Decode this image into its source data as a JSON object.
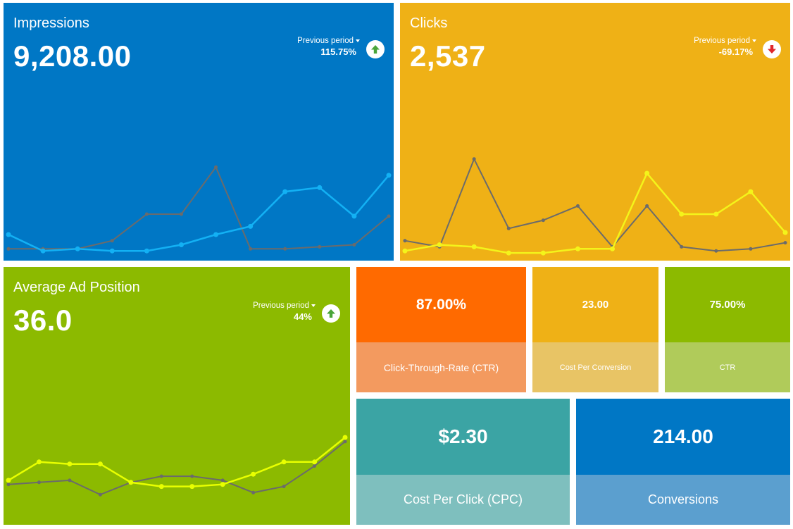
{
  "colors": {
    "blue": "#0077c5",
    "yellow": "#efb116",
    "green": "#8cba00",
    "orange": "#ff6a00",
    "teal": "#3ba4a4",
    "line_gray": "#6b6b6b",
    "line_blue": "#13b1f4",
    "line_yellow": "#f4f41a",
    "line_lime": "#e8ff00"
  },
  "tiles": {
    "impressions": {
      "title": "Impressions",
      "value": "9,208.00",
      "compare_label": "Previous period",
      "compare_pct": "115.75%",
      "trend": "up",
      "trend_icon": "arrow-up-icon"
    },
    "clicks": {
      "title": "Clicks",
      "value": "2,537",
      "compare_label": "Previous period",
      "compare_pct": "-69.17%",
      "trend": "down",
      "trend_icon": "arrow-down-icon"
    },
    "avg_position": {
      "title": "Average Ad Position",
      "value": "36.0",
      "compare_label": "Previous period",
      "compare_pct": "44%",
      "trend": "up",
      "trend_icon": "arrow-up-icon"
    }
  },
  "kpis": {
    "ctr_percent": {
      "value": "87.00%",
      "label": "Click-Through-Rate (CTR)"
    },
    "cost_per_conversion": {
      "value": "23.00",
      "label": "Cost Per Conversion"
    },
    "ctr": {
      "value": "75.00%",
      "label": "CTR"
    },
    "cpc": {
      "value": "$2.30",
      "label": "Cost Per Click (CPC)"
    },
    "conversions": {
      "value": "214.00",
      "label": "Conversions"
    }
  },
  "chart_data": [
    {
      "type": "line",
      "chart": "impressions-sparkline",
      "ylim": [
        0,
        100
      ],
      "series": [
        {
          "role": "current",
          "values": [
            10,
            2,
            3,
            2,
            2,
            5,
            10,
            14,
            31,
            33,
            19,
            39
          ]
        },
        {
          "role": "previous",
          "values": [
            3,
            3,
            3,
            7,
            20,
            20,
            43,
            3,
            3,
            4,
            5,
            19
          ]
        }
      ]
    },
    {
      "type": "line",
      "chart": "clicks-sparkline",
      "ylim": [
        0,
        100
      ],
      "series": [
        {
          "role": "current",
          "values": [
            2,
            5,
            4,
            1,
            1,
            3,
            3,
            40,
            20,
            20,
            31,
            11
          ]
        },
        {
          "role": "previous",
          "values": [
            7,
            4,
            47,
            13,
            17,
            24,
            4,
            24,
            4,
            2,
            3,
            6
          ]
        }
      ]
    },
    {
      "type": "line",
      "chart": "avg-position-sparkline",
      "ylim": [
        0,
        100
      ],
      "series": [
        {
          "role": "current",
          "values": [
            19,
            28,
            27,
            27,
            18,
            16,
            16,
            17,
            22,
            28,
            28,
            40
          ]
        },
        {
          "role": "previous",
          "values": [
            17,
            18,
            19,
            12,
            18,
            21,
            21,
            19,
            13,
            16,
            26,
            38
          ]
        }
      ]
    }
  ]
}
